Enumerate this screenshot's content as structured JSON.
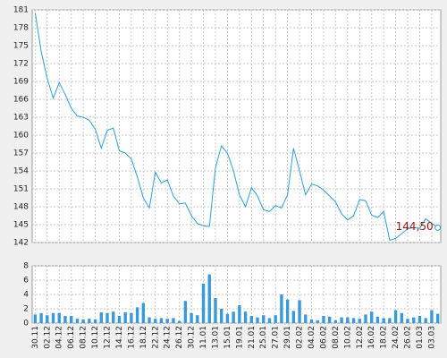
{
  "chart_data": [
    {
      "type": "line",
      "color": "#2b9fd9",
      "label_color": "#8b1a1a",
      "grid": true,
      "ylim": [
        142,
        181
      ],
      "yticks": [
        142,
        145,
        148,
        151,
        154,
        157,
        160,
        163,
        166,
        169,
        172,
        175,
        178,
        181
      ],
      "values": [
        180.5,
        174,
        169.5,
        166.2,
        168.8,
        166.8,
        164.5,
        163.2,
        163,
        162.5,
        161,
        157.8,
        160.8,
        161.2,
        157.4,
        157,
        156,
        153,
        149.5,
        147.8,
        153.8,
        152,
        152.5,
        149.8,
        148.5,
        148.6,
        146.5,
        145.2,
        144.8,
        144.7,
        154.5,
        158.2,
        157,
        154,
        150,
        148,
        151.2,
        149.8,
        147.5,
        147.2,
        148.2,
        147.8,
        150,
        157.8,
        154,
        150,
        151.8,
        151.5,
        150.8,
        149.8,
        148.8,
        146.8,
        145.8,
        146.5,
        149.2,
        149,
        146.6,
        146.2,
        147.2,
        142.4,
        142.7,
        143.5,
        144.3,
        144.5,
        144.4,
        146,
        145.2,
        144.5
      ],
      "value_labels": [
        null,
        null,
        null,
        null,
        null,
        null,
        null,
        null,
        null,
        null,
        null,
        null,
        null,
        null,
        null,
        null,
        null,
        null,
        null,
        null,
        null,
        null,
        null,
        null,
        null,
        null,
        null,
        null,
        null,
        null,
        null,
        null,
        null,
        null,
        null,
        null,
        null,
        null,
        null,
        null,
        null,
        null,
        null,
        null,
        null,
        null,
        null,
        null,
        null,
        null,
        null,
        null,
        null,
        null,
        null,
        null,
        null,
        null,
        null,
        null,
        null,
        null,
        null,
        null,
        null,
        null,
        null,
        "144,50"
      ]
    },
    {
      "type": "bar",
      "color": "#3a9ad9",
      "grid": true,
      "ylim": [
        0,
        8
      ],
      "yticks": [
        0,
        2,
        4,
        6,
        8
      ],
      "categories": [
        "30.11",
        null,
        "02.12",
        null,
        "04.12",
        null,
        "06.12",
        null,
        "08.12",
        null,
        "10.12",
        null,
        "12.12",
        null,
        "14.12",
        null,
        "16.12",
        null,
        "18.12",
        null,
        "22.12",
        null,
        "24.12",
        null,
        "26.12",
        null,
        "30.12",
        null,
        "11.01",
        null,
        "13.01",
        null,
        "15.01",
        null,
        "19.01",
        null,
        "21.01",
        null,
        "25.01",
        null,
        "27.01",
        null,
        "29.01",
        null,
        "02.02",
        null,
        "04.02",
        null,
        "06.02",
        null,
        "08.02",
        null,
        "10.02",
        null,
        "12.02",
        null,
        "16.02",
        null,
        "18.02",
        null,
        "24.02",
        null,
        "26.02",
        null,
        "01.03",
        null,
        "03.03",
        null
      ],
      "values": [
        1.2,
        1.4,
        1.1,
        1.4,
        1.4,
        1.0,
        1.0,
        0.6,
        0.5,
        0.6,
        0.5,
        1.5,
        1.4,
        1.6,
        1.0,
        1.5,
        1.4,
        2.2,
        2.8,
        0.8,
        0.6,
        0.7,
        0.6,
        0.7,
        0.3,
        3.1,
        1.4,
        1.1,
        5.5,
        6.8,
        3.5,
        2.0,
        1.3,
        1.6,
        2.5,
        1.6,
        1.0,
        0.8,
        1.1,
        0.7,
        1.1,
        4.0,
        3.3,
        1.7,
        3.2,
        1.2,
        0.5,
        0.4,
        1.0,
        0.9,
        0.4,
        0.8,
        0.8,
        0.7,
        0.6,
        1.2,
        1.6,
        0.9,
        0.7,
        0.7,
        1.8,
        1.4,
        0.6,
        0.8,
        1.0,
        0.7,
        1.8,
        1.3
      ]
    }
  ]
}
